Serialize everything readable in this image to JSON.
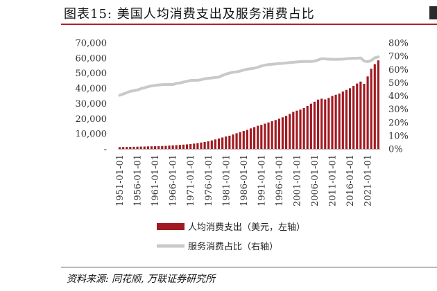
{
  "header": {
    "title": "图表15: 美国人均消费支出及服务消费占比"
  },
  "footer": {
    "source": "资料来源: 同花顺, 万联证券研究所"
  },
  "colors": {
    "bar": "#a11a21",
    "line": "#c9c9c9",
    "accent_rule": "#b0222b"
  },
  "chart_data": {
    "type": "bar",
    "title": "",
    "x": [
      "1951-01-01",
      "1952-01-01",
      "1953-01-01",
      "1954-01-01",
      "1955-01-01",
      "1956-01-01",
      "1957-01-01",
      "1958-01-01",
      "1959-01-01",
      "1960-01-01",
      "1961-01-01",
      "1962-01-01",
      "1963-01-01",
      "1964-01-01",
      "1965-01-01",
      "1966-01-01",
      "1967-01-01",
      "1968-01-01",
      "1969-01-01",
      "1970-01-01",
      "1971-01-01",
      "1972-01-01",
      "1973-01-01",
      "1974-01-01",
      "1975-01-01",
      "1976-01-01",
      "1977-01-01",
      "1978-01-01",
      "1979-01-01",
      "1980-01-01",
      "1981-01-01",
      "1982-01-01",
      "1983-01-01",
      "1984-01-01",
      "1985-01-01",
      "1986-01-01",
      "1987-01-01",
      "1988-01-01",
      "1989-01-01",
      "1990-01-01",
      "1991-01-01",
      "1992-01-01",
      "1993-01-01",
      "1994-01-01",
      "1995-01-01",
      "1996-01-01",
      "1997-01-01",
      "1998-01-01",
      "1999-01-01",
      "2000-01-01",
      "2001-01-01",
      "2002-01-01",
      "2003-01-01",
      "2004-01-01",
      "2005-01-01",
      "2006-01-01",
      "2007-01-01",
      "2008-01-01",
      "2009-01-01",
      "2010-01-01",
      "2011-01-01",
      "2012-01-01",
      "2013-01-01",
      "2014-01-01",
      "2015-01-01",
      "2016-01-01",
      "2017-01-01",
      "2018-01-01",
      "2019-01-01",
      "2020-01-01",
      "2021-01-01",
      "2022-01-01",
      "2023-01-01",
      "2024-01-01"
    ],
    "x_tick_labels": [
      "1951-01-01",
      "1956-01-01",
      "1961-01-01",
      "1966-01-01",
      "1971-01-01",
      "1976-01-01",
      "1981-01-01",
      "1986-01-01",
      "1991-01-01",
      "1996-01-01",
      "2001-01-01",
      "2006-01-01",
      "2011-01-01",
      "2016-01-01",
      "2021-01-01"
    ],
    "series": [
      {
        "name": "人均消费支出（美元，左轴）",
        "type": "bar",
        "axis": "left",
        "values": [
          1220,
          1270,
          1330,
          1360,
          1450,
          1500,
          1570,
          1600,
          1700,
          1750,
          1790,
          1890,
          1960,
          2090,
          2230,
          2380,
          2480,
          2680,
          2860,
          3010,
          3240,
          3540,
          3900,
          4230,
          4630,
          5100,
          5640,
          6270,
          6930,
          7560,
          8270,
          8750,
          9560,
          10360,
          11150,
          11890,
          12630,
          13570,
          14460,
          15330,
          15910,
          16700,
          17500,
          18340,
          19100,
          19980,
          20910,
          21900,
          23100,
          24490,
          25300,
          26000,
          27000,
          28400,
          29900,
          31200,
          32600,
          33200,
          32700,
          33700,
          35000,
          35800,
          36600,
          37900,
          39000,
          40100,
          41600,
          43200,
          44500,
          43000,
          47900,
          53000,
          56000,
          58500
        ]
      },
      {
        "name": "服务消费占比（右轴）",
        "type": "line",
        "axis": "right",
        "values": [
          40.5,
          41.5,
          42.5,
          43.5,
          44.0,
          44.5,
          45.5,
          46.2,
          47.0,
          47.6,
          48.0,
          48.3,
          48.5,
          48.7,
          48.6,
          48.6,
          49.5,
          49.8,
          50.5,
          51.0,
          51.7,
          51.8,
          51.8,
          52.3,
          53.0,
          53.3,
          53.6,
          54.0,
          54.2,
          55.5,
          56.5,
          57.3,
          57.9,
          58.2,
          58.8,
          59.6,
          60.2,
          60.6,
          61.0,
          61.7,
          62.6,
          63.3,
          63.7,
          63.9,
          64.2,
          64.5,
          64.6,
          64.9,
          65.2,
          65.4,
          65.7,
          65.9,
          66.0,
          66.1,
          66.0,
          66.3,
          67.2,
          68.2,
          68.0,
          67.7,
          67.7,
          67.6,
          67.7,
          67.8,
          68.1,
          68.3,
          68.4,
          68.5,
          68.7,
          66.4,
          65.8,
          66.8,
          68.8,
          69.5
        ]
      }
    ],
    "y_left": {
      "min": 0,
      "max": 70000,
      "ticks": [
        "-",
        "10,000",
        "20,000",
        "30,000",
        "40,000",
        "50,000",
        "60,000",
        "70,000"
      ]
    },
    "y_right": {
      "min": 0,
      "max": 80,
      "ticks": [
        "0%",
        "10%",
        "20%",
        "30%",
        "40%",
        "50%",
        "60%",
        "70%",
        "80%"
      ]
    },
    "grid": false,
    "legend": {
      "position": "bottom-center",
      "items": [
        "人均消费支出（美元，左轴）",
        "服务消费占比（右轴）"
      ]
    }
  }
}
